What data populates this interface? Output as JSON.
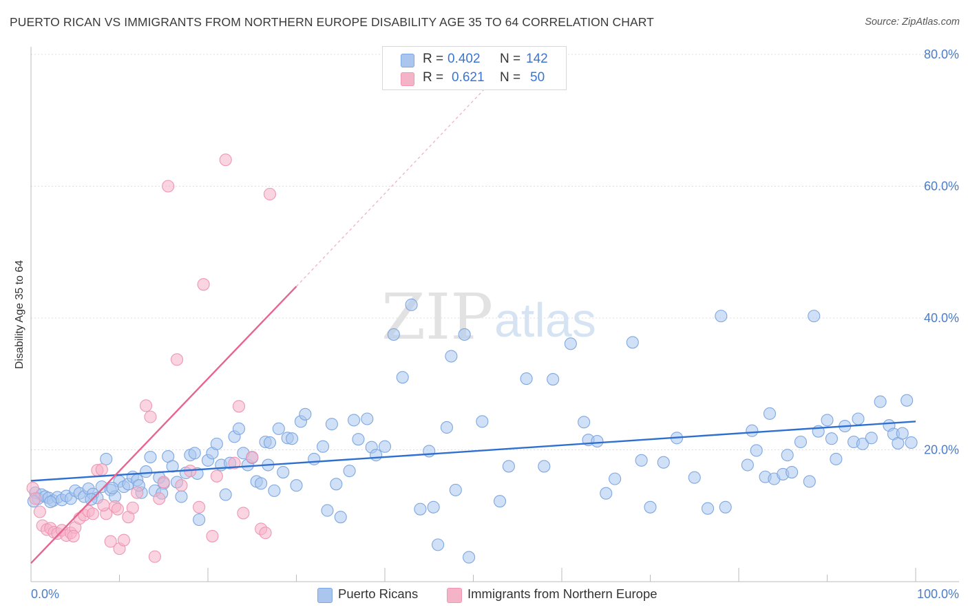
{
  "header": {
    "title": "PUERTO RICAN VS IMMIGRANTS FROM NORTHERN EUROPE DISABILITY AGE 35 TO 64 CORRELATION CHART",
    "source": "Source: ZipAtlas.com"
  },
  "legend": {
    "rows": [
      {
        "r_label": "R =",
        "r_value": "0.402",
        "n_label": "N =",
        "n_value": "142",
        "color": "#aac6ef"
      },
      {
        "r_label": "R =",
        "r_value": "0.621",
        "n_label": "N =",
        "n_value": "50",
        "color": "#f5b3c8"
      }
    ]
  },
  "bottom_legend": {
    "items": [
      {
        "label": "Puerto Ricans",
        "color": "#aac6ef"
      },
      {
        "label": "Immigrants from Northern Europe",
        "color": "#f5b3c8"
      }
    ]
  },
  "watermark": {
    "zip": "ZIP",
    "atlas": "atlas"
  },
  "chart_data": {
    "type": "scatter",
    "ylabel": "Disability Age 35 to 64",
    "xlim": [
      0,
      100
    ],
    "ylim": [
      0,
      80
    ],
    "x_tick_labels": [
      "0.0%",
      "100.0%"
    ],
    "y_tick_values": [
      20,
      40,
      60,
      80
    ],
    "y_tick_labels": [
      "20.0%",
      "40.0%",
      "60.0%",
      "80.0%"
    ],
    "grid": true,
    "legend_position": "top-center",
    "series": [
      {
        "name": "Puerto Ricans",
        "color": "#7ea7e0",
        "fill": "#aac6ef",
        "trend": {
          "x": [
            0,
            100
          ],
          "y": [
            15.3,
            24.3
          ],
          "color": "#2e6fd0"
        },
        "points": [
          [
            0.5,
            13.5
          ],
          [
            0.8,
            12.6
          ],
          [
            1.2,
            13.2
          ],
          [
            1.6,
            12.9
          ],
          [
            2.0,
            12.7
          ],
          [
            2.5,
            12.3
          ],
          [
            3.0,
            12.8
          ],
          [
            3.5,
            12.4
          ],
          [
            4.0,
            13.0
          ],
          [
            4.5,
            12.6
          ],
          [
            5.0,
            13.8
          ],
          [
            5.5,
            13.4
          ],
          [
            6.0,
            12.9
          ],
          [
            6.5,
            14.1
          ],
          [
            7.0,
            13.3
          ],
          [
            7.5,
            12.7
          ],
          [
            8.0,
            14.4
          ],
          [
            8.5,
            18.6
          ],
          [
            9.0,
            13.9
          ],
          [
            9.5,
            12.9
          ],
          [
            10.0,
            15.2
          ],
          [
            10.5,
            14.4
          ],
          [
            11.0,
            14.8
          ],
          [
            11.5,
            15.9
          ],
          [
            12.0,
            15.4
          ],
          [
            12.5,
            13.5
          ],
          [
            13.0,
            16.7
          ],
          [
            13.5,
            18.9
          ],
          [
            14.0,
            13.8
          ],
          [
            14.5,
            15.8
          ],
          [
            15.0,
            14.9
          ],
          [
            15.5,
            19.0
          ],
          [
            16.0,
            17.5
          ],
          [
            16.5,
            15.1
          ],
          [
            17.0,
            12.9
          ],
          [
            17.5,
            16.5
          ],
          [
            18.0,
            19.2
          ],
          [
            18.5,
            19.5
          ],
          [
            19.0,
            9.4
          ],
          [
            20.0,
            18.4
          ],
          [
            20.5,
            19.5
          ],
          [
            21.0,
            20.9
          ],
          [
            21.5,
            17.7
          ],
          [
            22.0,
            13.2
          ],
          [
            22.5,
            18.0
          ],
          [
            23.0,
            22.0
          ],
          [
            23.5,
            23.2
          ],
          [
            24.0,
            19.5
          ],
          [
            24.5,
            17.7
          ],
          [
            25.0,
            18.8
          ],
          [
            25.5,
            15.2
          ],
          [
            26.0,
            14.9
          ],
          [
            26.5,
            21.2
          ],
          [
            27.0,
            21.1
          ],
          [
            27.5,
            13.8
          ],
          [
            28.0,
            23.2
          ],
          [
            28.5,
            16.6
          ],
          [
            29.0,
            21.8
          ],
          [
            29.5,
            21.7
          ],
          [
            30.0,
            14.6
          ],
          [
            30.5,
            24.3
          ],
          [
            31.0,
            25.4
          ],
          [
            32.0,
            18.6
          ],
          [
            33.0,
            20.5
          ],
          [
            33.5,
            10.8
          ],
          [
            34.0,
            23.9
          ],
          [
            34.5,
            14.8
          ],
          [
            35.0,
            9.8
          ],
          [
            36.0,
            16.8
          ],
          [
            36.5,
            24.5
          ],
          [
            37.0,
            21.6
          ],
          [
            38.0,
            24.7
          ],
          [
            38.5,
            20.4
          ],
          [
            39.0,
            19.2
          ],
          [
            40.0,
            20.5
          ],
          [
            41.0,
            37.5
          ],
          [
            42.0,
            31.0
          ],
          [
            43.0,
            42.0
          ],
          [
            44.0,
            11.0
          ],
          [
            45.0,
            19.8
          ],
          [
            45.5,
            11.3
          ],
          [
            46.0,
            5.6
          ],
          [
            47.0,
            23.4
          ],
          [
            47.5,
            34.2
          ],
          [
            48.0,
            13.9
          ],
          [
            49.0,
            37.5
          ],
          [
            49.5,
            3.7
          ],
          [
            51.0,
            24.3
          ],
          [
            53.0,
            12.2
          ],
          [
            54.0,
            17.5
          ],
          [
            56.0,
            30.8
          ],
          [
            58.0,
            17.5
          ],
          [
            59.0,
            30.7
          ],
          [
            61.0,
            36.1
          ],
          [
            62.5,
            24.2
          ],
          [
            63.0,
            21.5
          ],
          [
            64.0,
            21.3
          ],
          [
            65.0,
            13.4
          ],
          [
            66.0,
            15.6
          ],
          [
            68.0,
            36.3
          ],
          [
            69.0,
            18.4
          ],
          [
            70.0,
            11.3
          ],
          [
            71.5,
            18.1
          ],
          [
            73.0,
            21.8
          ],
          [
            75.0,
            15.8
          ],
          [
            76.5,
            11.1
          ],
          [
            78.0,
            40.3
          ],
          [
            78.5,
            11.3
          ],
          [
            81.0,
            17.7
          ],
          [
            81.5,
            22.9
          ],
          [
            82.0,
            19.9
          ],
          [
            83.0,
            15.9
          ],
          [
            83.5,
            25.5
          ],
          [
            84.0,
            15.6
          ],
          [
            85.0,
            16.3
          ],
          [
            85.5,
            19.2
          ],
          [
            86.0,
            16.6
          ],
          [
            87.0,
            21.2
          ],
          [
            88.0,
            15.2
          ],
          [
            88.5,
            40.3
          ],
          [
            89.0,
            22.8
          ],
          [
            90.0,
            24.5
          ],
          [
            90.5,
            21.7
          ],
          [
            91.0,
            18.6
          ],
          [
            92.0,
            23.6
          ],
          [
            93.0,
            21.2
          ],
          [
            93.5,
            24.7
          ],
          [
            94.0,
            20.9
          ],
          [
            95.0,
            21.8
          ],
          [
            96.0,
            27.3
          ],
          [
            97.0,
            23.7
          ],
          [
            97.5,
            22.4
          ],
          [
            98.0,
            21.0
          ],
          [
            98.5,
            22.5
          ],
          [
            99.0,
            27.5
          ],
          [
            99.5,
            21.1
          ],
          [
            0.3,
            12.2
          ],
          [
            2.2,
            12.1
          ],
          [
            6.8,
            12.5
          ],
          [
            9.2,
            14.2
          ],
          [
            12.2,
            14.6
          ],
          [
            14.8,
            13.4
          ],
          [
            18.8,
            16.4
          ],
          [
            26.8,
            17.7
          ]
        ]
      },
      {
        "name": "Immigrants from Northern Europe",
        "color": "#ee96b3",
        "fill": "#f5b3c8",
        "trend": {
          "x": [
            0,
            30
          ],
          "y": [
            2.8,
            44.8
          ],
          "extended_to": [
            52.5,
            76.5
          ],
          "color": "#e8638f"
        },
        "points": [
          [
            0.2,
            14.2
          ],
          [
            0.5,
            12.6
          ],
          [
            1.0,
            10.6
          ],
          [
            1.3,
            8.5
          ],
          [
            1.8,
            7.9
          ],
          [
            2.2,
            8.1
          ],
          [
            2.6,
            7.5
          ],
          [
            3.0,
            7.3
          ],
          [
            3.5,
            7.8
          ],
          [
            4.0,
            7.0
          ],
          [
            4.5,
            7.4
          ],
          [
            5.0,
            8.2
          ],
          [
            5.5,
            9.6
          ],
          [
            6.0,
            10.1
          ],
          [
            6.5,
            10.7
          ],
          [
            7.0,
            10.3
          ],
          [
            7.5,
            16.9
          ],
          [
            8.0,
            17.0
          ],
          [
            8.5,
            10.3
          ],
          [
            9.0,
            6.1
          ],
          [
            9.5,
            11.4
          ],
          [
            10.0,
            5.0
          ],
          [
            10.5,
            6.3
          ],
          [
            11.0,
            9.8
          ],
          [
            11.5,
            11.2
          ],
          [
            12.0,
            13.5
          ],
          [
            13.0,
            26.7
          ],
          [
            13.5,
            25.0
          ],
          [
            14.0,
            3.8
          ],
          [
            14.5,
            12.6
          ],
          [
            15.0,
            15.1
          ],
          [
            16.5,
            33.7
          ],
          [
            17.0,
            14.6
          ],
          [
            18.0,
            16.8
          ],
          [
            19.0,
            11.3
          ],
          [
            19.5,
            45.1
          ],
          [
            20.5,
            6.9
          ],
          [
            21.0,
            16.0
          ],
          [
            22.0,
            64.0
          ],
          [
            23.0,
            18.0
          ],
          [
            23.5,
            26.6
          ],
          [
            24.0,
            10.4
          ],
          [
            25.0,
            18.9
          ],
          [
            26.0,
            8.0
          ],
          [
            26.5,
            7.4
          ],
          [
            27.0,
            58.8
          ],
          [
            15.5,
            60.0
          ],
          [
            9.8,
            11.0
          ],
          [
            4.8,
            6.9
          ],
          [
            8.2,
            11.6
          ]
        ]
      }
    ]
  }
}
